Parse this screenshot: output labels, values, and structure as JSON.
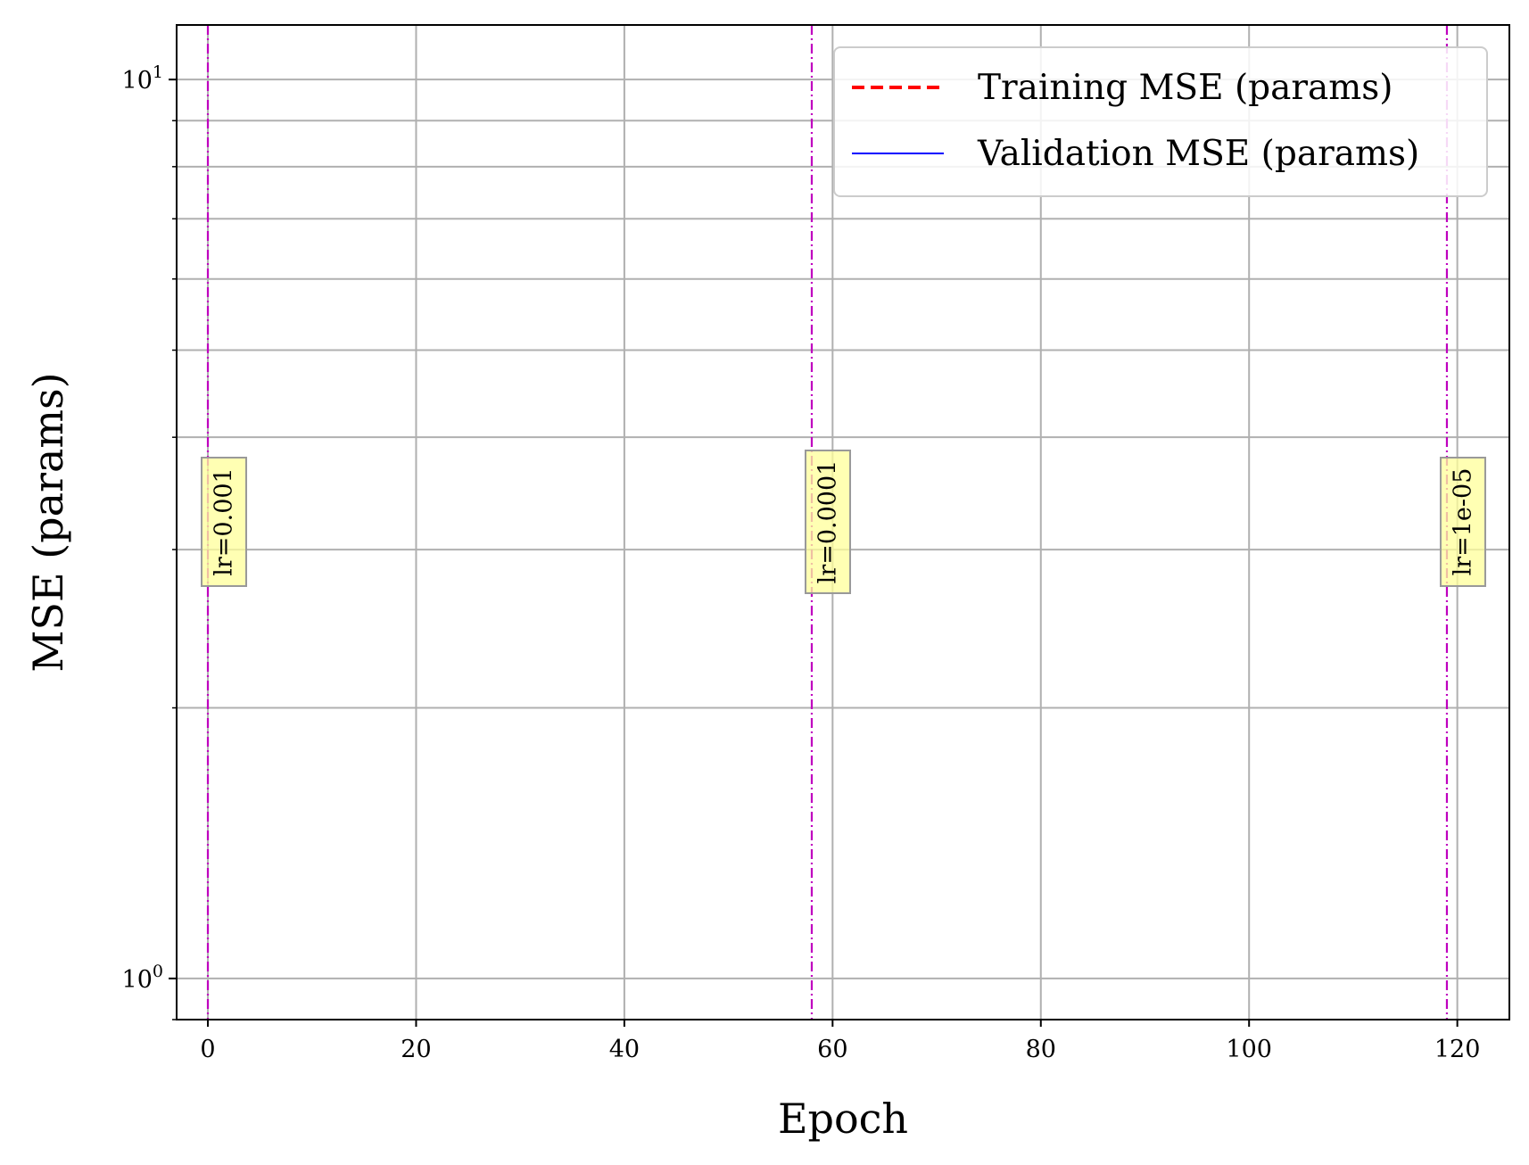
{
  "chart_data": {
    "type": "line",
    "title": "",
    "xlabel": "Epoch",
    "ylabel": "MSE (params)",
    "yscale": "log",
    "xlim": [
      -3,
      125
    ],
    "ylim": [
      0.9,
      11.5
    ],
    "xticks": [
      {
        "value": 0,
        "label": "0"
      },
      {
        "value": 20,
        "label": "20"
      },
      {
        "value": 40,
        "label": "40"
      },
      {
        "value": 60,
        "label": "60"
      },
      {
        "value": 80,
        "label": "80"
      },
      {
        "value": 100,
        "label": "100"
      },
      {
        "value": 120,
        "label": "120"
      }
    ],
    "yticks_major": [
      {
        "value": 1,
        "base": "10",
        "exp": "0"
      },
      {
        "value": 10,
        "base": "10",
        "exp": "1"
      }
    ],
    "yticks_minor": [
      0.9,
      2,
      3,
      4,
      5,
      6,
      7,
      8,
      9
    ],
    "grid": true,
    "legend_position": "top-right",
    "series": [
      {
        "name": "Training MSE (params)",
        "color": "#ff0000",
        "style": "dashed",
        "x": [],
        "y": []
      },
      {
        "name": "Validation MSE (params)",
        "color": "#0000ff",
        "style": "solid",
        "x": [],
        "y": []
      }
    ],
    "lr_markers": [
      {
        "epoch": 0,
        "label": "lr=0.001"
      },
      {
        "epoch": 58,
        "label": "lr=0.0001"
      },
      {
        "epoch": 119,
        "label": "lr=1e-05"
      }
    ],
    "lr_marker_color": "#bf00bf",
    "annotation_bg": "#ffff99"
  }
}
